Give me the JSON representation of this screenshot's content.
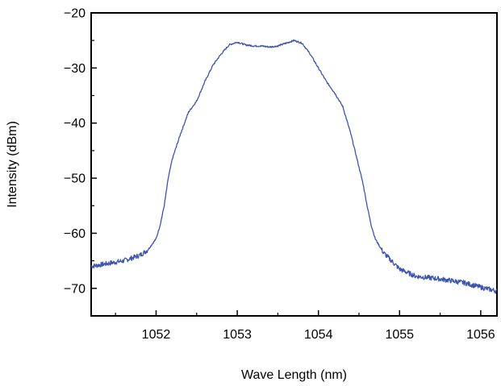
{
  "chart_data": {
    "type": "line",
    "xlabel": "Wave Length (nm)",
    "ylabel": "Intensity (dBm)",
    "xlim": [
      1051.2,
      1056.2
    ],
    "ylim": [
      -75,
      -20
    ],
    "x_ticks": [
      1052,
      1053,
      1054,
      1055,
      1056
    ],
    "x_tick_labels": [
      "1052",
      "1053",
      "1054",
      "1055",
      "1056"
    ],
    "y_ticks": [
      -20,
      -30,
      -40,
      -50,
      -60,
      -70
    ],
    "y_tick_labels": [
      "−20",
      "−30",
      "−40",
      "−50",
      "−60",
      "−70"
    ],
    "grid": false,
    "line_color": "#3d55b0",
    "series": [
      {
        "x": [
          1051.2,
          1051.4,
          1051.6,
          1051.8,
          1051.9,
          1052.0,
          1052.05,
          1052.1,
          1052.15,
          1052.2,
          1052.3,
          1052.4,
          1052.5,
          1052.6,
          1052.7,
          1052.8,
          1052.9,
          1053.0,
          1053.1,
          1053.2,
          1053.3,
          1053.4,
          1053.5,
          1053.6,
          1053.7,
          1053.8,
          1053.9,
          1054.0,
          1054.1,
          1054.2,
          1054.3,
          1054.35,
          1054.4,
          1054.45,
          1054.5,
          1054.55,
          1054.6,
          1054.65,
          1054.7,
          1054.8,
          1054.9,
          1055.0,
          1055.2,
          1055.5,
          1055.8,
          1056.0,
          1056.2
        ],
        "y": [
          -66.0,
          -65.5,
          -65.0,
          -64.0,
          -63.0,
          -61.0,
          -58.5,
          -55.0,
          -50.0,
          -46.5,
          -42.0,
          -38.0,
          -36.0,
          -32.5,
          -29.5,
          -27.5,
          -25.8,
          -25.3,
          -25.8,
          -26.0,
          -26.0,
          -26.2,
          -26.0,
          -25.5,
          -25.0,
          -25.5,
          -27.5,
          -30.0,
          -32.5,
          -34.5,
          -37.0,
          -39.5,
          -42.0,
          -45.0,
          -48.0,
          -51.0,
          -55.0,
          -58.5,
          -61.0,
          -63.5,
          -65.0,
          -66.5,
          -67.8,
          -68.3,
          -69.0,
          -69.8,
          -70.5
        ]
      }
    ]
  }
}
